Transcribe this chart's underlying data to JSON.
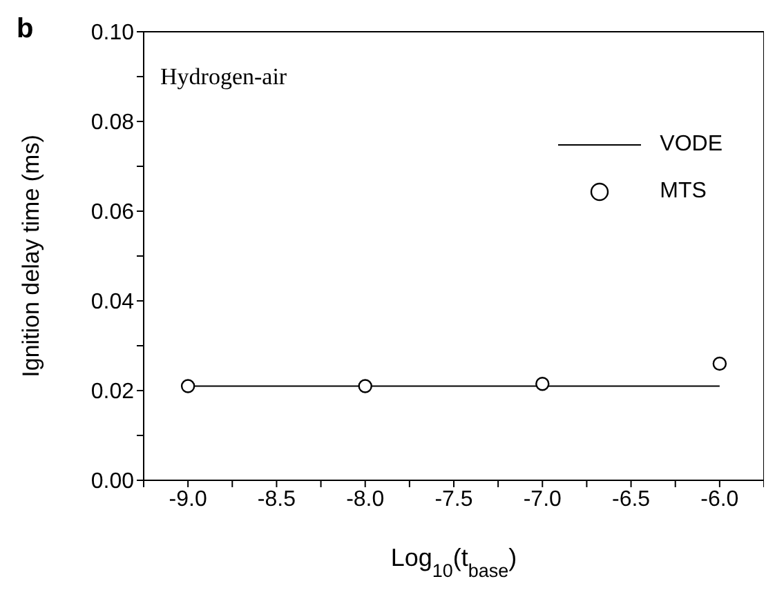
{
  "chart_data": {
    "type": "line",
    "xlabel": "Log$_{10}$(t$_{base}$)",
    "ylabel": "Ignition delay time (ms)",
    "annotations": [
      "b",
      "Hydrogen-air"
    ],
    "x": [
      -9,
      -8,
      -7,
      -6
    ],
    "series": [
      {
        "name": "VODE",
        "color": "#000000",
        "marker": "none",
        "line_style": "solid",
        "values": [
          0.021,
          0.021,
          0.021,
          0.021
        ]
      },
      {
        "name": "MTS",
        "type": "scatter",
        "color": "#000000",
        "marker": "circle",
        "values": [
          0.021,
          0.021,
          0.0215,
          0.026
        ]
      }
    ],
    "xlim": [
      -9.25,
      -5.75
    ],
    "xticks": [
      {
        "value": -9.25,
        "label": null
      },
      {
        "value": -9,
        "label": "-9.0"
      },
      {
        "value": -8.75,
        "label": null
      },
      -8.5,
      {
        "value": -8.25,
        "label": null
      },
      {
        "value": -8,
        "label": "-8.0"
      },
      {
        "value": -7.75,
        "label": null
      },
      -7.5,
      {
        "value": -7.25,
        "label": null
      },
      {
        "value": -7,
        "label": "-7.0"
      },
      {
        "value": -6.75,
        "label": null
      },
      -6.5,
      {
        "value": -6.25,
        "label": null
      },
      {
        "value": -6,
        "label": "-6.0"
      },
      {
        "value": -5.75,
        "label": null
      }
    ],
    "ylim": [
      0,
      0.1
    ],
    "yticks": [
      {
        "value": 0,
        "label": "0.00"
      },
      {
        "value": 0.01,
        "label": null
      },
      0.02,
      {
        "value": 0.03,
        "label": null
      },
      0.04,
      {
        "value": 0.05,
        "label": null
      },
      0.06,
      {
        "value": 0.07,
        "label": null
      },
      0.08,
      {
        "value": 0.09,
        "label": null
      },
      {
        "value": 0.1,
        "label": "0.10"
      }
    ],
    "legend": "top right",
    "grid": false
  }
}
